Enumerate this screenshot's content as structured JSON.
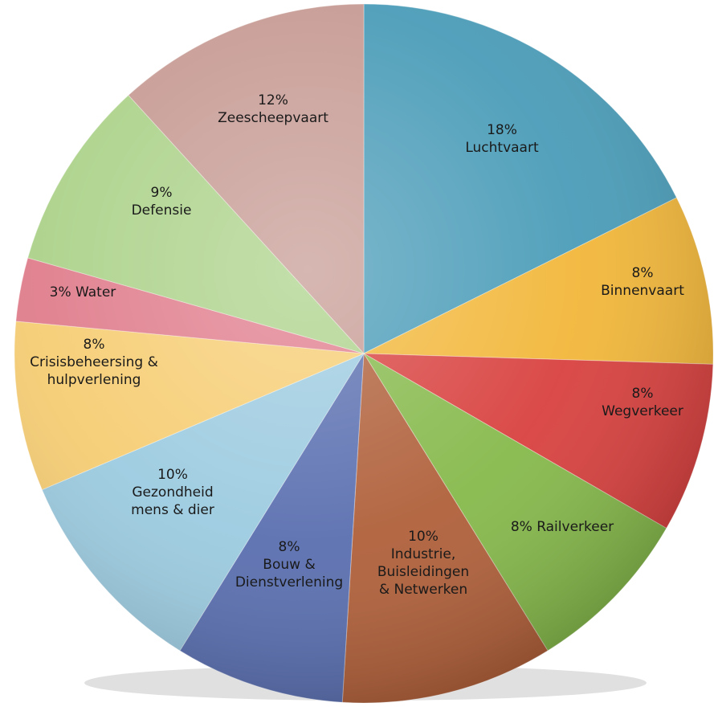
{
  "chart_data": {
    "type": "pie",
    "title": "",
    "start_angle_deg": 0,
    "direction": "clockwise",
    "slices": [
      {
        "percent": "18%",
        "name": "Luchtvaart",
        "lines": [
          "18%",
          "Luchtvaart"
        ],
        "value": 18,
        "color": "#4a9cb8"
      },
      {
        "percent": "8%",
        "name": "Binnenvaart",
        "lines": [
          "8%",
          "Binnenvaart"
        ],
        "value": 8,
        "color": "#f2b73a"
      },
      {
        "percent": "8%",
        "name": "Wegverkeer",
        "lines": [
          "8%",
          "Wegverkeer"
        ],
        "value": 8,
        "color": "#d8413f"
      },
      {
        "percent": "8%",
        "name": "Railverkeer",
        "lines": [
          "8% Railverkeer"
        ],
        "value": 8,
        "color": "#86b94b"
      },
      {
        "percent": "10%",
        "name": "Industrie, Buisleidingen & Netwerken",
        "lines": [
          "10%",
          "Industrie,",
          "Buisleidingen",
          "& Netwerken"
        ],
        "value": 10,
        "color": "#b0603a"
      },
      {
        "percent": "8%",
        "name": "Bouw & Dienstverlening",
        "lines": [
          "8%",
          "Bouw &",
          "Dienstverlening"
        ],
        "value": 8,
        "color": "#5a6fb0"
      },
      {
        "percent": "10%",
        "name": "Gezondheid mens & dier",
        "lines": [
          "10%",
          "Gezondheid",
          "mens & dier"
        ],
        "value": 10,
        "color": "#9ccbe0"
      },
      {
        "percent": "8%",
        "name": "Crisisbeheersing & hulpverlening",
        "lines": [
          "8%",
          "Crisisbeheersing &",
          "hulpverlening"
        ],
        "value": 8,
        "color": "#f6cd73"
      },
      {
        "percent": "3%",
        "name": "Water",
        "lines": [
          "3% Water"
        ],
        "value": 3,
        "color": "#e07d8c"
      },
      {
        "percent": "9%",
        "name": "Defensie",
        "lines": [
          "9%",
          "Defensie"
        ],
        "value": 9,
        "color": "#acd28a"
      },
      {
        "percent": "12%",
        "name": "Zeescheepvaart",
        "lines": [
          "12%",
          "Zeescheepvaart"
        ],
        "value": 12,
        "color": "#c79b94"
      }
    ]
  }
}
